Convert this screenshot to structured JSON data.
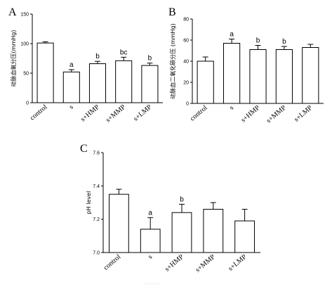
{
  "chart_data": [
    {
      "panel": "A",
      "type": "bar",
      "categories": [
        "control",
        "s",
        "s+HMP",
        "s+MMP",
        "s+LMP"
      ],
      "values": [
        101,
        52,
        66,
        71,
        63
      ],
      "errors": [
        2,
        4,
        4,
        6,
        4
      ],
      "annotations": [
        "",
        "a",
        "b",
        "bc",
        "b"
      ],
      "ylabel": "动脉血氧分压(mmHg)",
      "ylim": [
        0,
        150
      ],
      "yticks": [
        "0",
        "50",
        "100",
        "150"
      ],
      "grid": false,
      "legend": "none"
    },
    {
      "panel": "B",
      "type": "bar",
      "categories": [
        "control",
        "s",
        "s+HMP",
        "s+MMP",
        "s+LMP"
      ],
      "values": [
        40,
        57,
        51,
        51,
        53
      ],
      "errors": [
        4,
        4,
        4,
        3,
        3
      ],
      "annotations": [
        "",
        "a",
        "b",
        "b",
        ""
      ],
      "ylabel": "动脉血二氧化碳分压 (mmHg)",
      "ylim": [
        0,
        80
      ],
      "yticks": [
        "0",
        "20",
        "40",
        "60",
        "80"
      ],
      "grid": false,
      "legend": "none"
    },
    {
      "panel": "C",
      "type": "bar",
      "categories": [
        "control",
        "s",
        "s+HMP",
        "s+MMP",
        "s+LMP"
      ],
      "values": [
        7.35,
        7.14,
        7.24,
        7.26,
        7.19
      ],
      "errors": [
        0.03,
        0.07,
        0.05,
        0.04,
        0.07
      ],
      "annotations": [
        "",
        "a",
        "b",
        "",
        ""
      ],
      "ylabel": "pH level",
      "ylim": [
        7.0,
        7.6
      ],
      "yticks": [
        "7.0",
        "7.2",
        "7.4",
        "7.6"
      ],
      "grid": false,
      "legend": "none"
    }
  ],
  "footer_text": "· · · · · ·"
}
